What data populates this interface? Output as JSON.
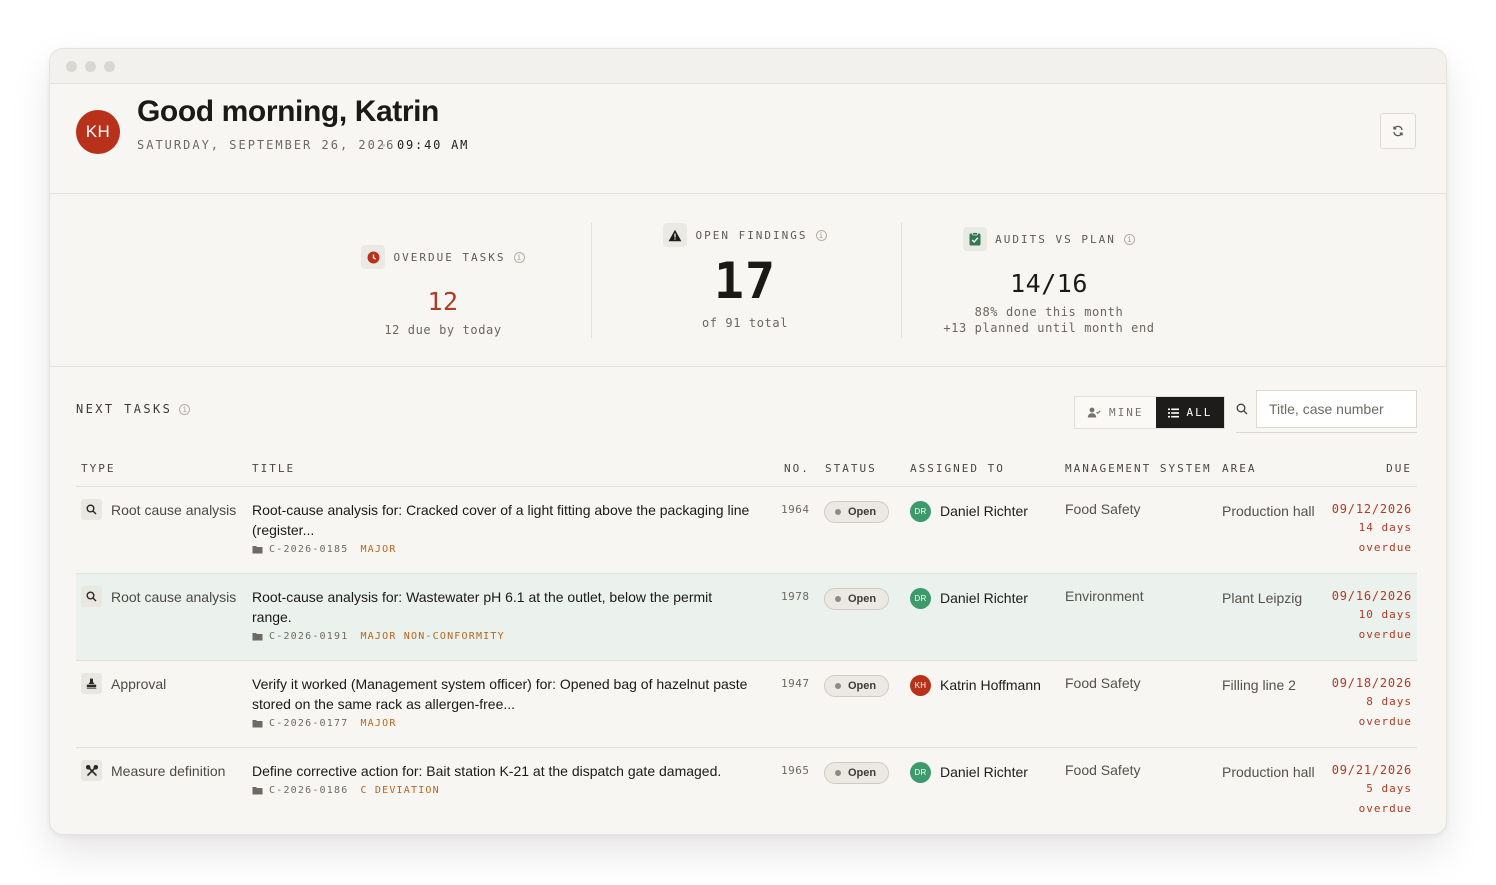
{
  "header": {
    "initials": "KH",
    "greeting": "Good morning, Katrin",
    "date": "SATURDAY, SEPTEMBER 26, 2026",
    "time": "09:40 AM",
    "refresh_icon": "refresh-icon"
  },
  "stats": {
    "overdue": {
      "label": "OVERDUE TASKS",
      "value": "12",
      "sub": "12 due by today",
      "icon": "clock-icon"
    },
    "findings": {
      "label": "OPEN FINDINGS",
      "value": "17",
      "sub": "of 91 total",
      "icon": "warning-icon"
    },
    "audits": {
      "label": "AUDITS VS PLAN",
      "value": "14/16",
      "sub1": "88% done this month",
      "sub2": "+13 planned until month end",
      "icon": "clipboard-check-icon"
    }
  },
  "tasks": {
    "title": "NEXT TASKS",
    "filter_mine": "MINE",
    "filter_all": "ALL",
    "active_filter": "ALL",
    "search_placeholder": "Title, case number",
    "columns": {
      "type": "TYPE",
      "title": "TITLE",
      "no": "NO.",
      "status": "STATUS",
      "assigned": "ASSIGNED TO",
      "msys": "MANAGEMENT SYSTEM",
      "area": "AREA",
      "due": "DUE"
    },
    "rows": [
      {
        "type": "Root cause analysis",
        "type_icon": "search-icon",
        "title": "Root-cause analysis for: Cracked cover of a light fitting above the packaging line (register...",
        "case": "C-2026-0185",
        "severity": "MAJOR",
        "no": "1964",
        "status": "Open",
        "assignee_initials": "DR",
        "assignee": "Daniel Richter",
        "msys": "Food Safety",
        "area": "Production hall",
        "due_date": "09/12/2026",
        "due_days": "14 days",
        "due_note": "overdue"
      },
      {
        "type": "Root cause analysis",
        "type_icon": "search-icon",
        "title": "Root-cause analysis for: Wastewater pH 6.1 at the outlet, below the permit range.",
        "case": "C-2026-0191",
        "severity": "MAJOR NON-CONFORMITY",
        "no": "1978",
        "status": "Open",
        "assignee_initials": "DR",
        "assignee": "Daniel Richter",
        "msys": "Environment",
        "area": "Plant Leipzig",
        "due_date": "09/16/2026",
        "due_days": "10 days",
        "due_note": "overdue"
      },
      {
        "type": "Approval",
        "type_icon": "stamp-icon",
        "title": "Verify it worked (Management system officer) for: Opened bag of hazelnut paste stored on the same rack as allergen-free...",
        "case": "C-2026-0177",
        "severity": "MAJOR",
        "no": "1947",
        "status": "Open",
        "assignee_initials": "KH",
        "assignee": "Katrin Hoffmann",
        "msys": "Food Safety",
        "area": "Filling line 2",
        "due_date": "09/18/2026",
        "due_days": "8 days",
        "due_note": "overdue"
      },
      {
        "type": "Measure definition",
        "type_icon": "tools-icon",
        "title": "Define corrective action for: Bait station K-21 at the dispatch gate damaged.",
        "case": "C-2026-0186",
        "severity": "C DEVIATION",
        "no": "1965",
        "status": "Open",
        "assignee_initials": "DR",
        "assignee": "Daniel Richter",
        "msys": "Food Safety",
        "area": "Production hall",
        "due_date": "09/21/2026",
        "due_days": "5 days",
        "due_note": "overdue"
      }
    ]
  }
}
